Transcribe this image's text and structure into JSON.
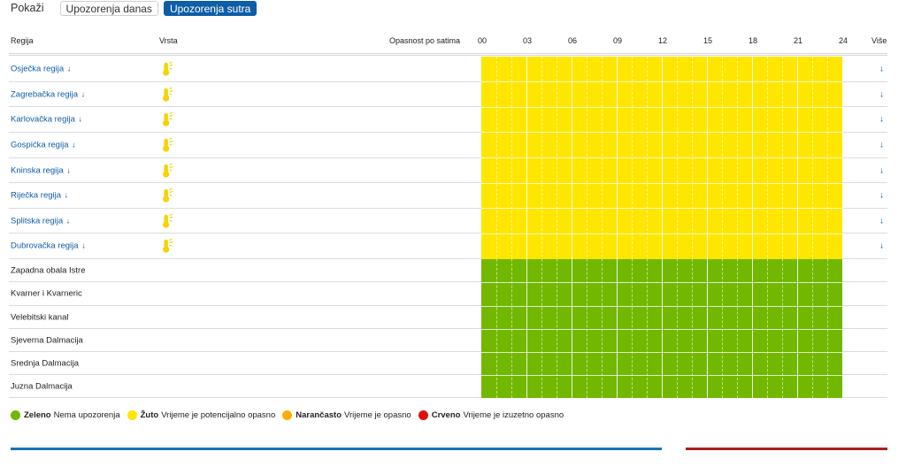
{
  "toolbar": {
    "label": "Pokaži",
    "buttons": [
      {
        "label": "Upozorenja danas",
        "active": false
      },
      {
        "label": "Upozorenja sutra",
        "active": true
      }
    ]
  },
  "header": {
    "region": "Regija",
    "type": "Vrsta",
    "hazard": "Opasnost po satima",
    "hours": [
      "00",
      "03",
      "06",
      "09",
      "12",
      "15",
      "18",
      "21",
      "24"
    ],
    "more": "Više"
  },
  "regions": [
    {
      "name": "Osječka regija",
      "arrow": "↓",
      "type_icon": "thermometer-heat-icon",
      "level": "yellow",
      "more": "↓"
    },
    {
      "name": "Zagrebačka regija",
      "arrow": "↓",
      "type_icon": "thermometer-heat-icon",
      "level": "yellow",
      "more": "↓"
    },
    {
      "name": "Karlovačka regija",
      "arrow": "↓",
      "type_icon": "thermometer-heat-icon",
      "level": "yellow",
      "more": "↓"
    },
    {
      "name": "Gospićka regija",
      "arrow": "↓",
      "type_icon": "thermometer-heat-icon",
      "level": "yellow",
      "more": "↓"
    },
    {
      "name": "Kninska regija",
      "arrow": "↓",
      "type_icon": "thermometer-heat-icon",
      "level": "yellow",
      "more": "↓"
    },
    {
      "name": "Riječka regija",
      "arrow": "↓",
      "type_icon": "thermometer-heat-icon",
      "level": "yellow",
      "more": "↓"
    },
    {
      "name": "Splitska regija",
      "arrow": "↓",
      "type_icon": "thermometer-heat-icon",
      "level": "yellow",
      "more": "↓"
    },
    {
      "name": "Dubrovačka regija",
      "arrow": "↓",
      "type_icon": "thermometer-heat-icon",
      "level": "yellow",
      "more": "↓"
    }
  ],
  "sea_regions": [
    {
      "name": "Zapadna obala Istre",
      "level": "green"
    },
    {
      "name": "Kvarner i Kvarneric",
      "level": "green"
    },
    {
      "name": "Velebitski kanal",
      "level": "green"
    },
    {
      "name": "Sjeverna Dalmacija",
      "level": "green"
    },
    {
      "name": "Srednja Dalmacija",
      "level": "green"
    },
    {
      "name": "Juzna Dalmacija",
      "level": "green"
    }
  ],
  "legend": [
    {
      "color": "#72b800",
      "label": "Zeleno",
      "desc": "Nema upozorenja"
    },
    {
      "color": "#ffe600",
      "label": "Žuto",
      "desc": "Vrijeme je potencijalno opasno"
    },
    {
      "color": "#ffae00",
      "label": "Narančasto",
      "desc": "Vrijeme je opasno"
    },
    {
      "color": "#e01010",
      "label": "Crveno",
      "desc": "Vrijeme je izuzetno opasno"
    }
  ],
  "colors": {
    "yellow": "#ffe600",
    "green": "#72b800",
    "link": "#0e5da6",
    "accent_blue": "#1a73b8",
    "accent_red": "#a8231c"
  }
}
